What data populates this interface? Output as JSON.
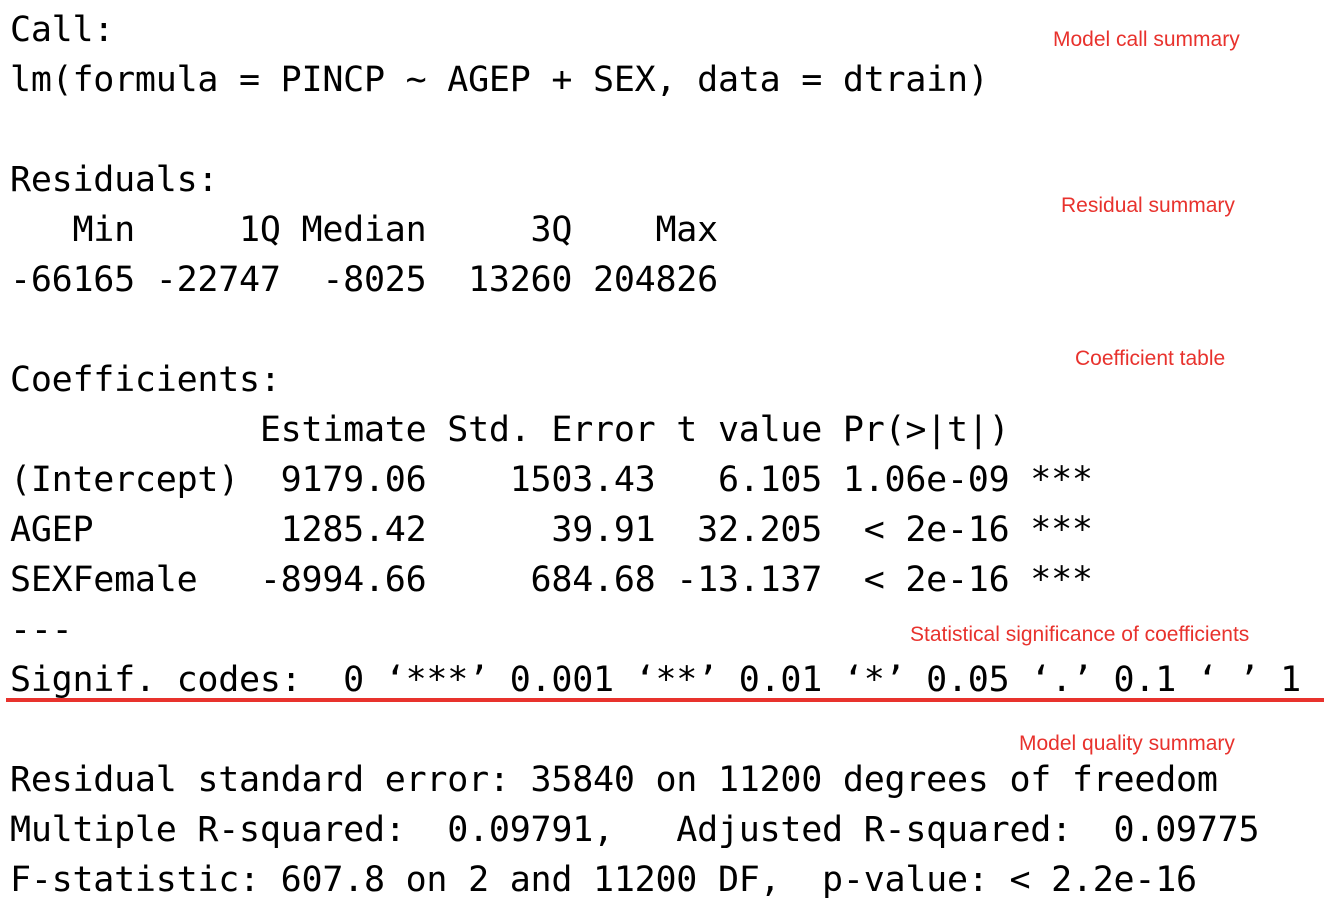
{
  "colors": {
    "text": "#000000",
    "annotation": "#e8322d",
    "rule": "#e8322d"
  },
  "output_lines": [
    "Call:",
    "lm(formula = PINCP ~ AGEP + SEX, data = dtrain)",
    "",
    "Residuals:",
    "   Min     1Q Median     3Q    Max ",
    "-66165 -22747  -8025  13260 204826 ",
    "",
    "Coefficients:",
    "            Estimate Std. Error t value Pr(>|t|)    ",
    "(Intercept)  9179.06    1503.43   6.105 1.06e-09 ***",
    "AGEP         1285.42      39.91  32.205  < 2e-16 ***",
    "SEXFemale   -8994.66     684.68 -13.137  < 2e-16 ***",
    "---",
    "Signif. codes:  0 ‘***’ 0.001 ‘**’ 0.01 ‘*’ 0.05 ‘.’ 0.1 ‘ ’ 1",
    "",
    "Residual standard error: 35840 on 11200 degrees of freedom",
    "Multiple R-squared:  0.09791,   Adjusted R-squared:  0.09775 ",
    "F-statistic: 607.8 on 2 and 11200 DF,  p-value: < 2.2e-16"
  ],
  "annotations": {
    "model_call": "Model call summary",
    "residual": "Residual summary",
    "coefficient": "Coefficient table",
    "significance": "Statistical significance of coefficients",
    "quality": "Model quality summary"
  }
}
